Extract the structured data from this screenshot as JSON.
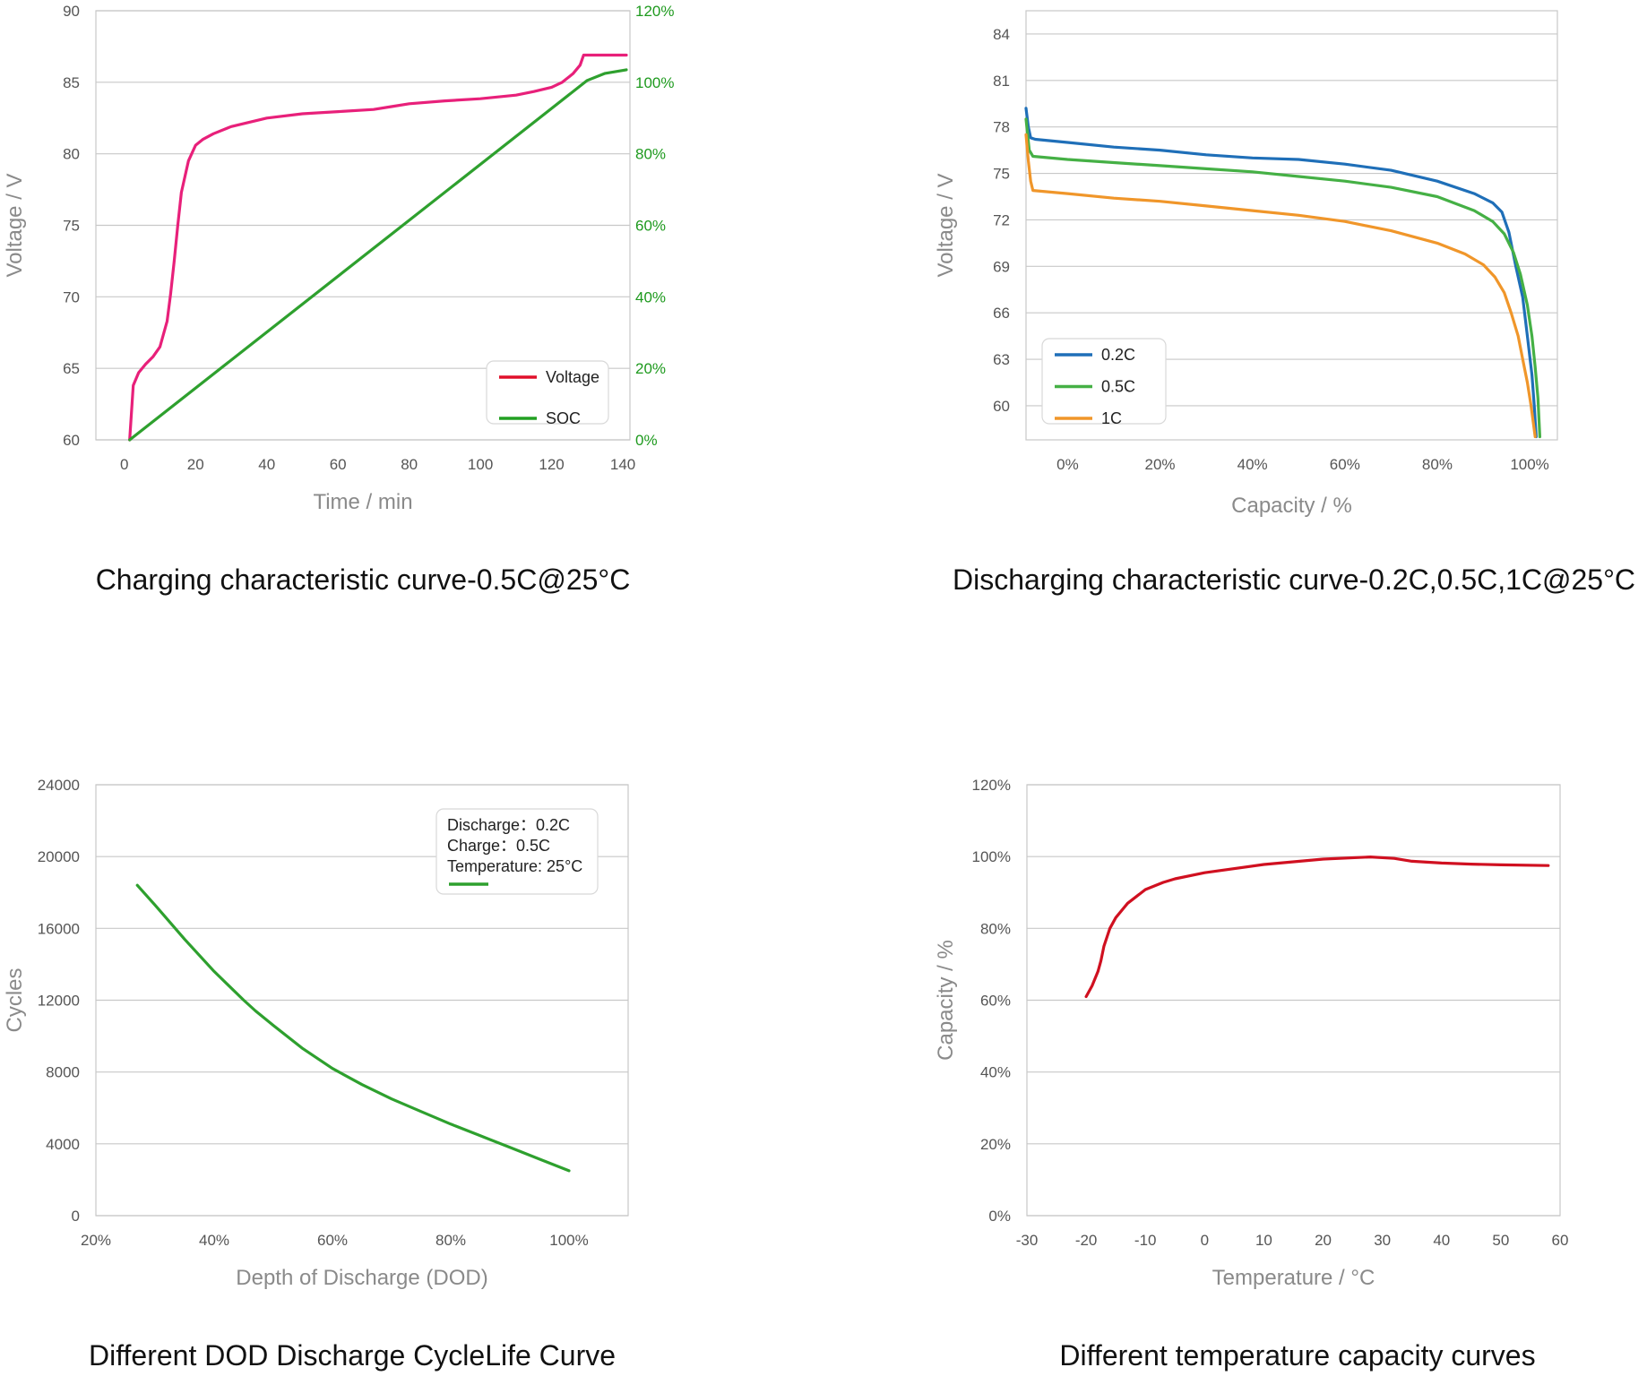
{
  "chart_data": [
    {
      "type": "line",
      "title": "Charging characteristic curve-0.5C@25°C",
      "xlabel": "Time / min",
      "ylabel": "Voltage / V",
      "xlim": [
        -8,
        142
      ],
      "ylim": [
        60,
        90
      ],
      "y2lim": [
        0,
        120
      ],
      "xticks": [
        "0",
        "20",
        "40",
        "60",
        "80",
        "100",
        "120",
        "140"
      ],
      "yticks": [
        "60",
        "65",
        "70",
        "75",
        "80",
        "85",
        "90"
      ],
      "y2ticks": [
        "0%",
        "20%",
        "40%",
        "60%",
        "80%",
        "100%",
        "120%"
      ],
      "legend_position": "bottom-right",
      "grid": true,
      "series": [
        {
          "name": "Voltage",
          "color": "#e8207a",
          "legend_color": "#e0102a",
          "axis": "left",
          "x": [
            1.5,
            2.5,
            4,
            6,
            8,
            10,
            12,
            13,
            14,
            15,
            16,
            18,
            20,
            22,
            25,
            30,
            40,
            50,
            60,
            70,
            75,
            80,
            90,
            100,
            110,
            115,
            120,
            123,
            126,
            128,
            129,
            130,
            135,
            141
          ],
          "y": [
            60,
            63.8,
            64.7,
            65.3,
            65.8,
            66.5,
            68.3,
            70.2,
            72.5,
            75,
            77.3,
            79.5,
            80.6,
            81,
            81.4,
            81.9,
            82.5,
            82.8,
            82.95,
            83.1,
            83.3,
            83.5,
            83.7,
            83.85,
            84.1,
            84.35,
            84.65,
            85,
            85.6,
            86.2,
            86.9,
            86.9,
            86.9,
            86.9
          ]
        },
        {
          "name": "SOC",
          "color": "#2ea02e",
          "legend_color": "#22a022",
          "axis": "right",
          "x": [
            1.5,
            130,
            135,
            141
          ],
          "y": [
            0,
            100.5,
            102.5,
            103.5
          ]
        }
      ]
    },
    {
      "type": "line",
      "title": "Discharging characteristic curve-0.2C,0.5C,1C@25°C",
      "xlabel": "Capacity / %",
      "ylabel": "Voltage / V",
      "xlim": [
        -9,
        106
      ],
      "ylim": [
        57.8,
        85.5
      ],
      "xticks": [
        "0%",
        "20%",
        "40%",
        "60%",
        "80%",
        "100%"
      ],
      "yticks": [
        "60",
        "63",
        "66",
        "69",
        "72",
        "75",
        "78",
        "81",
        "84"
      ],
      "legend_position": "bottom-left",
      "grid": true,
      "series": [
        {
          "name": "0.2C",
          "color": "#1f6fb8",
          "x": [
            -9,
            -8.5,
            -8,
            -7,
            0,
            10,
            20,
            30,
            40,
            50,
            60,
            70,
            80,
            88,
            92,
            94,
            95.5,
            97,
            98.5,
            99.5,
            100.5,
            101,
            101.4
          ],
          "y": [
            79.2,
            78,
            77.3,
            77.2,
            77,
            76.7,
            76.5,
            76.2,
            76,
            75.9,
            75.6,
            75.2,
            74.5,
            73.7,
            73.1,
            72.5,
            71.2,
            69,
            67,
            64.5,
            62,
            60,
            58
          ]
        },
        {
          "name": "0.5C",
          "color": "#45b045",
          "x": [
            -9,
            -8.3,
            -7.5,
            0,
            10,
            20,
            30,
            40,
            50,
            60,
            70,
            80,
            88,
            92,
            94.5,
            96.5,
            98,
            99.5,
            100.5,
            101.2,
            101.8,
            102.2
          ],
          "y": [
            78.5,
            76.5,
            76.1,
            75.9,
            75.7,
            75.5,
            75.3,
            75.1,
            74.8,
            74.5,
            74.1,
            73.5,
            72.6,
            71.9,
            71.1,
            69.9,
            68.5,
            66.5,
            64.5,
            62.5,
            60.5,
            58
          ]
        },
        {
          "name": "1C",
          "color": "#f0962a",
          "x": [
            -9,
            -8.5,
            -8,
            -7.5,
            0,
            10,
            20,
            30,
            40,
            50,
            60,
            70,
            80,
            86,
            90,
            92.5,
            94.5,
            96,
            97.5,
            98.5,
            99.5,
            100.3,
            101.2
          ],
          "y": [
            77.5,
            75.8,
            74.5,
            73.9,
            73.7,
            73.4,
            73.2,
            72.9,
            72.6,
            72.3,
            71.9,
            71.3,
            70.5,
            69.8,
            69.1,
            68.3,
            67.3,
            66,
            64.5,
            63,
            61.5,
            60,
            58
          ]
        }
      ]
    },
    {
      "type": "line",
      "title": "Different DOD Discharge CycleLife Curve",
      "xlabel": "Depth of Discharge (DOD)",
      "ylabel": "Cycles",
      "xlim": [
        20,
        110
      ],
      "ylim": [
        0,
        24000
      ],
      "xticks": [
        "20%",
        "40%",
        "60%",
        "80%",
        "100%"
      ],
      "yticks": [
        "0",
        "4000",
        "8000",
        "12000",
        "16000",
        "20000",
        "24000"
      ],
      "legend_position": "top-right",
      "legend_lines": [
        "Discharge：0.2C",
        "Charge：0.5C",
        "Temperature: 25°C"
      ],
      "grid": true,
      "series": [
        {
          "color": "#2ea02e",
          "x": [
            27,
            30,
            35,
            40,
            45,
            47,
            50,
            55,
            60,
            65,
            70,
            75,
            80,
            85,
            90,
            95,
            100
          ],
          "y": [
            18400,
            17300,
            15400,
            13600,
            12000,
            11400,
            10600,
            9300,
            8200,
            7300,
            6500,
            5800,
            5100,
            4450,
            3800,
            3150,
            2500
          ]
        }
      ]
    },
    {
      "type": "line",
      "title": "Different temperature capacity curves",
      "xlabel": "Temperature / °C",
      "ylabel": "Capacity / %",
      "xlim": [
        -30,
        60
      ],
      "ylim": [
        0,
        120
      ],
      "xticks": [
        "-30",
        "-20",
        "-10",
        "0",
        "10",
        "20",
        "30",
        "40",
        "50",
        "60"
      ],
      "yticks": [
        "0%",
        "20%",
        "40%",
        "60%",
        "80%",
        "100%",
        "120%"
      ],
      "grid": true,
      "series": [
        {
          "color": "#d01020",
          "x": [
            -20,
            -19,
            -18,
            -17.5,
            -17,
            -16,
            -15,
            -13,
            -10,
            -7,
            -5,
            0,
            10,
            20,
            28,
            32,
            35,
            40,
            45,
            50,
            58
          ],
          "y": [
            61,
            64,
            68,
            71,
            75,
            80,
            83,
            87,
            90.8,
            92.8,
            93.8,
            95.5,
            97.8,
            99.3,
            99.9,
            99.5,
            98.7,
            98.2,
            97.9,
            97.7,
            97.5
          ]
        }
      ]
    }
  ]
}
